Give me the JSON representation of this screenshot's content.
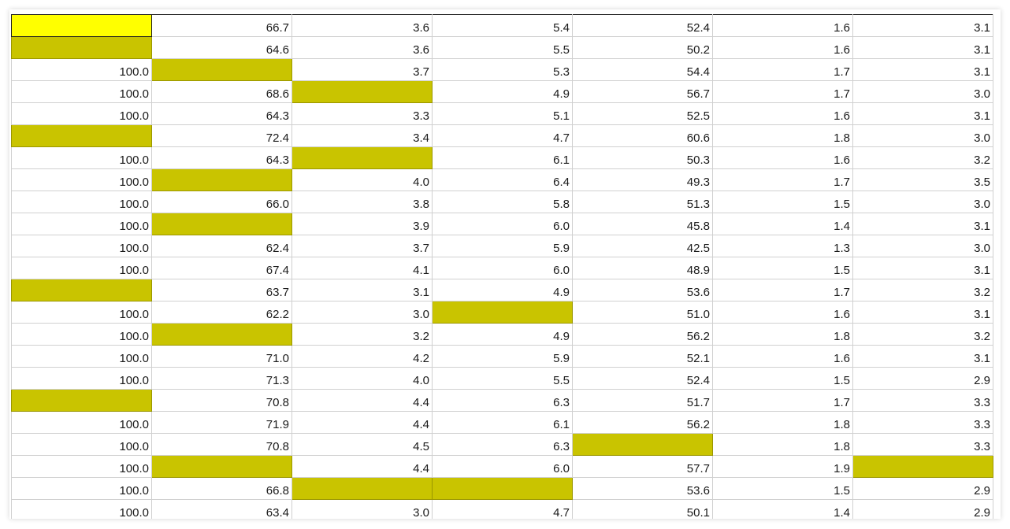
{
  "colors": {
    "missing_fill": "#c9c400",
    "active_fill": "#ffff00",
    "gridline": "#d0d0d0"
  },
  "rows": [
    [
      "",
      "66.7",
      "3.6",
      "5.4",
      "52.4",
      "1.6",
      "3.1"
    ],
    [
      "",
      "64.6",
      "3.6",
      "5.5",
      "50.2",
      "1.6",
      "3.1"
    ],
    [
      "100.0",
      "",
      "3.7",
      "5.3",
      "54.4",
      "1.7",
      "3.1"
    ],
    [
      "100.0",
      "68.6",
      "",
      "4.9",
      "56.7",
      "1.7",
      "3.0"
    ],
    [
      "100.0",
      "64.3",
      "3.3",
      "5.1",
      "52.5",
      "1.6",
      "3.1"
    ],
    [
      "",
      "72.4",
      "3.4",
      "4.7",
      "60.6",
      "1.8",
      "3.0"
    ],
    [
      "100.0",
      "64.3",
      "",
      "6.1",
      "50.3",
      "1.6",
      "3.2"
    ],
    [
      "100.0",
      "",
      "4.0",
      "6.4",
      "49.3",
      "1.7",
      "3.5"
    ],
    [
      "100.0",
      "66.0",
      "3.8",
      "5.8",
      "51.3",
      "1.5",
      "3.0"
    ],
    [
      "100.0",
      "",
      "3.9",
      "6.0",
      "45.8",
      "1.4",
      "3.1"
    ],
    [
      "100.0",
      "62.4",
      "3.7",
      "5.9",
      "42.5",
      "1.3",
      "3.0"
    ],
    [
      "100.0",
      "67.4",
      "4.1",
      "6.0",
      "48.9",
      "1.5",
      "3.1"
    ],
    [
      "",
      "63.7",
      "3.1",
      "4.9",
      "53.6",
      "1.7",
      "3.2"
    ],
    [
      "100.0",
      "62.2",
      "3.0",
      "",
      "51.0",
      "1.6",
      "3.1"
    ],
    [
      "100.0",
      "",
      "3.2",
      "4.9",
      "56.2",
      "1.8",
      "3.2"
    ],
    [
      "100.0",
      "71.0",
      "4.2",
      "5.9",
      "52.1",
      "1.6",
      "3.1"
    ],
    [
      "100.0",
      "71.3",
      "4.0",
      "5.5",
      "52.4",
      "1.5",
      "2.9"
    ],
    [
      "",
      "70.8",
      "4.4",
      "6.3",
      "51.7",
      "1.7",
      "3.3"
    ],
    [
      "100.0",
      "71.9",
      "4.4",
      "6.1",
      "56.2",
      "1.8",
      "3.3"
    ],
    [
      "100.0",
      "70.8",
      "4.5",
      "6.3",
      "",
      "1.8",
      "3.3"
    ],
    [
      "100.0",
      "",
      "4.4",
      "6.0",
      "57.7",
      "1.9",
      ""
    ],
    [
      "100.0",
      "66.8",
      "",
      "",
      "53.6",
      "1.5",
      "2.9"
    ],
    [
      "100.0",
      "63.4",
      "3.0",
      "4.7",
      "50.1",
      "1.4",
      "2.9"
    ]
  ],
  "active_cell": [
    0,
    0
  ]
}
